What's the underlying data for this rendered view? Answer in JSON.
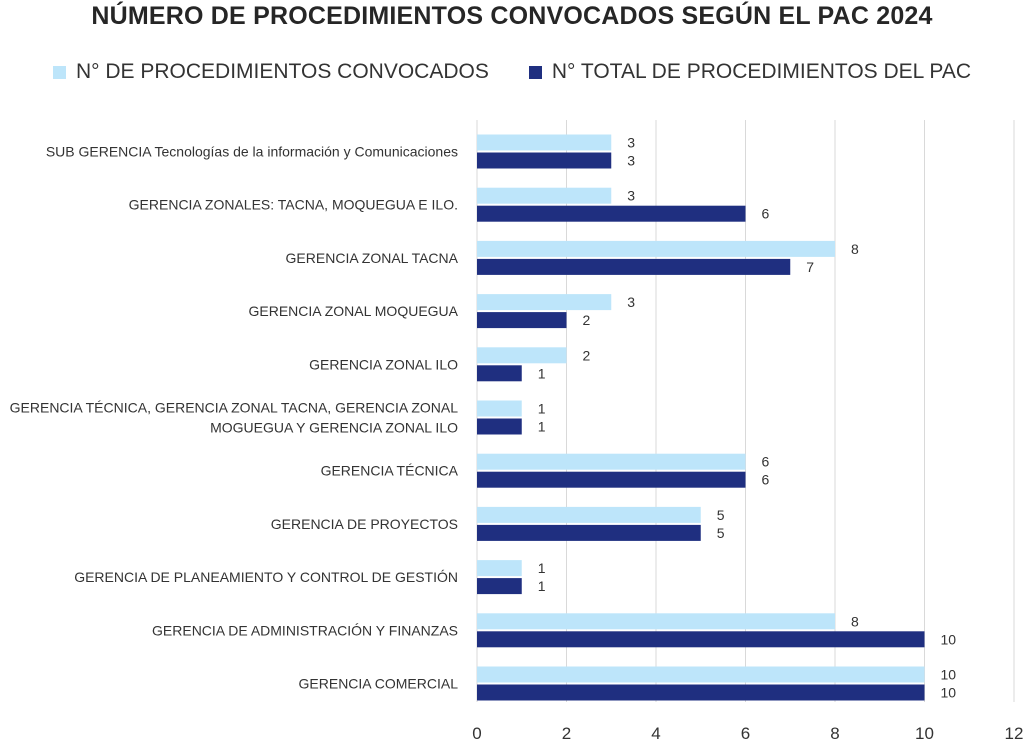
{
  "chart_data": {
    "type": "bar",
    "orientation": "horizontal",
    "title": "NÚMERO DE PROCEDIMIENTOS CONVOCADOS SEGÚN EL PAC 2024",
    "categories": [
      "SUB GERENCIA Tecnologías de la información y Comunicaciones",
      "GERENCIA ZONALES: TACNA, MOQUEGUA E ILO.",
      "GERENCIA ZONAL TACNA",
      "GERENCIA ZONAL MOQUEGUA",
      "GERENCIA ZONAL ILO",
      "GERENCIA TÉCNICA, GERENCIA ZONAL TACNA, GERENCIA ZONAL MOGUEGUA Y GERENCIA ZONAL ILO",
      "GERENCIA TÉCNICA",
      "GERENCIA DE PROYECTOS",
      "GERENCIA DE PLANEAMIENTO Y CONTROL DE GESTIÓN",
      "GERENCIA DE ADMINISTRACIÓN Y FINANZAS",
      "GERENCIA COMERCIAL"
    ],
    "category_label_lines": [
      [
        "SUB GERENCIA Tecnologías de la información y Comunicaciones"
      ],
      [
        "GERENCIA ZONALES: TACNA, MOQUEGUA E ILO."
      ],
      [
        "GERENCIA ZONAL TACNA"
      ],
      [
        "GERENCIA ZONAL MOQUEGUA"
      ],
      [
        "GERENCIA ZONAL ILO"
      ],
      [
        "GERENCIA TÉCNICA, GERENCIA ZONAL TACNA, GERENCIA ZONAL",
        "MOGUEGUA Y GERENCIA ZONAL ILO"
      ],
      [
        "GERENCIA TÉCNICA"
      ],
      [
        "GERENCIA DE PROYECTOS"
      ],
      [
        "GERENCIA DE PLANEAMIENTO Y CONTROL DE GESTIÓN"
      ],
      [
        "GERENCIA DE ADMINISTRACIÓN Y FINANZAS"
      ],
      [
        "GERENCIA COMERCIAL"
      ]
    ],
    "series": [
      {
        "name": "N° DE PROCEDIMIENTOS CONVOCADOS",
        "color": "#bde5fa",
        "values": [
          3,
          3,
          8,
          3,
          2,
          1,
          6,
          5,
          1,
          8,
          10
        ]
      },
      {
        "name": "N° TOTAL DE PROCEDIMIENTOS DEL PAC",
        "color": "#1f2f80",
        "values": [
          3,
          6,
          7,
          2,
          1,
          1,
          6,
          5,
          1,
          10,
          10
        ]
      }
    ],
    "xlim": [
      0,
      12
    ],
    "xticks": [
      0,
      2,
      4,
      6,
      8,
      10,
      12
    ],
    "grid": true,
    "legend_position": "top"
  }
}
